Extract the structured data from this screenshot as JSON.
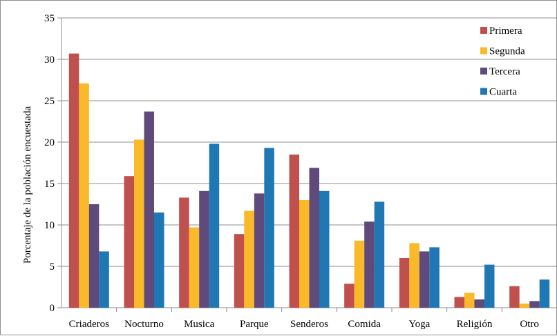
{
  "chart_data": {
    "type": "bar",
    "title": "",
    "xlabel": "",
    "ylabel": "Porcentaje de la población encuestada",
    "ylim": [
      0,
      35
    ],
    "yticks": [
      0,
      5,
      10,
      15,
      20,
      25,
      30,
      35
    ],
    "grid": "horizontal",
    "legend_position": "top-right",
    "categories": [
      "Criaderos",
      "Nocturno",
      "Musica",
      "Parque",
      "Senderos",
      "Comida",
      "Yoga",
      "Religión",
      "Otro"
    ],
    "series": [
      {
        "name": "Primera",
        "color": "#C0504D",
        "values": [
          30.7,
          15.9,
          13.3,
          8.9,
          18.5,
          2.9,
          6.0,
          1.3,
          2.6
        ]
      },
      {
        "name": "Segunda",
        "color": "#F9B928",
        "values": [
          27.1,
          20.3,
          9.7,
          11.7,
          13.0,
          8.1,
          7.8,
          1.8,
          0.5
        ]
      },
      {
        "name": "Tercera",
        "color": "#604A7B",
        "values": [
          12.5,
          23.7,
          14.1,
          13.8,
          16.9,
          10.4,
          6.8,
          1.0,
          0.8
        ]
      },
      {
        "name": "Cuarta",
        "color": "#1F78B4",
        "values": [
          6.8,
          11.5,
          19.8,
          19.3,
          14.1,
          12.8,
          7.3,
          5.2,
          3.4
        ]
      }
    ]
  }
}
